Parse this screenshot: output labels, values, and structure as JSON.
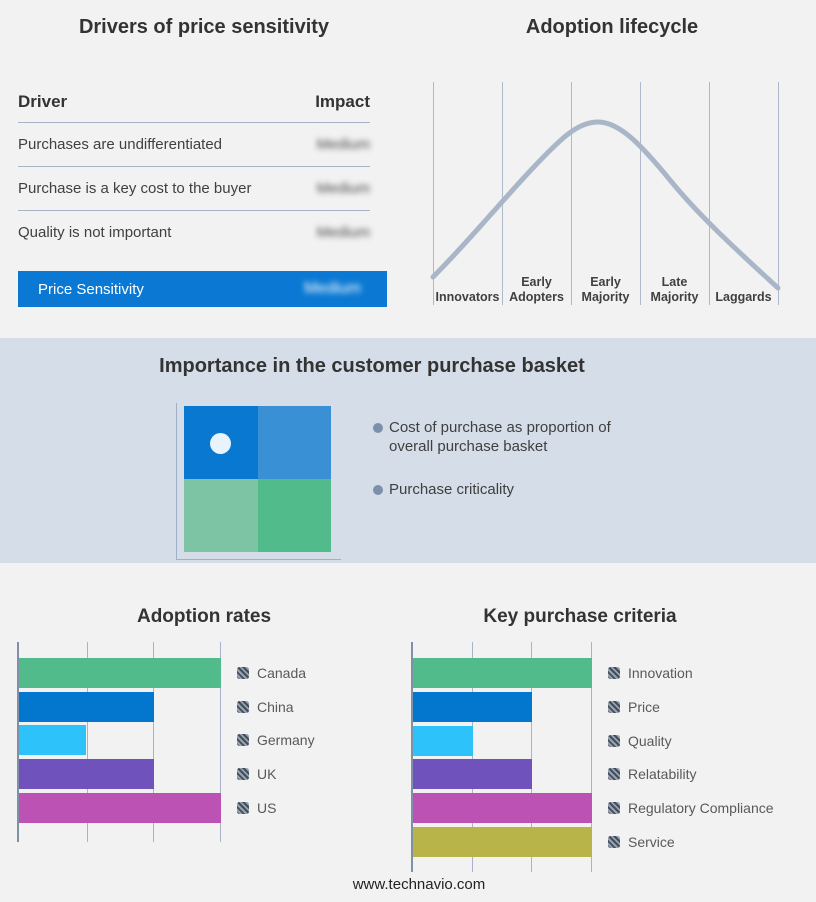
{
  "drivers_panel": {
    "title": "Drivers of price sensitivity",
    "col_driver": "Driver",
    "col_impact": "Impact",
    "rows": [
      {
        "driver": "Purchases are undifferentiated",
        "impact": "Medium"
      },
      {
        "driver": "Purchase is a key cost to the buyer",
        "impact": "Medium"
      },
      {
        "driver": "Quality is not important",
        "impact": "Medium"
      }
    ],
    "highlight": {
      "label": "Price Sensitivity",
      "impact": "Medium",
      "color": "#0b79d3"
    }
  },
  "lifecycle_panel": {
    "title": "Adoption lifecycle",
    "stages": [
      "Innovators",
      "Early Adopters",
      "Early Majority",
      "Late Majority",
      "Laggards"
    ],
    "curve_color": "#a9b6c8"
  },
  "basket_panel": {
    "title": "Importance in the customer purchase basket",
    "bullets": [
      "Cost of purchase as proportion of overall purchase basket",
      "Purchase criticality"
    ],
    "quadrant_colors": {
      "top_left": "#0878d0",
      "top_right": "#3990d4",
      "bottom_left": "#7cc4a4",
      "bottom_right": "#52bb8b"
    }
  },
  "adoption_rates": {
    "title": "Adoption rates",
    "max": 3,
    "items": [
      {
        "label": "Canada",
        "value": 3,
        "color": "#52bb8b"
      },
      {
        "label": "China",
        "value": 2,
        "color": "#0377ce"
      },
      {
        "label": "Germany",
        "value": 1,
        "color": "#2ec2fa"
      },
      {
        "label": "UK",
        "value": 2,
        "color": "#7052bc"
      },
      {
        "label": "US",
        "value": 3,
        "color": "#bc52b4"
      }
    ]
  },
  "key_criteria": {
    "title": "Key purchase criteria",
    "max": 3,
    "items": [
      {
        "label": "Innovation",
        "value": 3,
        "color": "#52bb8b"
      },
      {
        "label": "Price",
        "value": 2,
        "color": "#0377ce"
      },
      {
        "label": "Quality",
        "value": 1,
        "color": "#2ec2fa"
      },
      {
        "label": "Relatability",
        "value": 2,
        "color": "#7052bc"
      },
      {
        "label": "Regulatory Compliance",
        "value": 3,
        "color": "#bc52b4"
      },
      {
        "label": "Service",
        "value": 3,
        "color": "#b9b44a"
      }
    ]
  },
  "footer": {
    "url": "www.technavio.com"
  },
  "chart_data": [
    {
      "type": "table",
      "title": "Drivers of price sensitivity",
      "columns": [
        "Driver",
        "Impact"
      ],
      "rows": [
        [
          "Purchases are undifferentiated",
          "Medium"
        ],
        [
          "Purchase is a key cost to the buyer",
          "Medium"
        ],
        [
          "Quality is not important",
          "Medium"
        ],
        [
          "Price Sensitivity",
          "Medium"
        ]
      ],
      "note": "impact values shown blurred; last row highlighted blue"
    },
    {
      "type": "line",
      "title": "Adoption lifecycle",
      "categories": [
        "Innovators",
        "Early Adopters",
        "Early Majority",
        "Late Majority",
        "Laggards"
      ],
      "x_gridlines": 6,
      "relative_heights_at_gridlines": [
        0.15,
        0.6,
        0.94,
        0.89,
        0.52,
        0.09
      ],
      "peak": {
        "between": "Early Majority",
        "relative_height": 1.0
      },
      "shape": "bell curve, no y axis, vertical gridlines only"
    },
    {
      "type": "bar",
      "title": "Adoption rates",
      "orientation": "horizontal",
      "categories": [
        "Canada",
        "China",
        "Germany",
        "UK",
        "US"
      ],
      "values": [
        3,
        2,
        1,
        2,
        3
      ],
      "xlim": [
        0,
        3
      ],
      "grid": true,
      "legend_position": "right"
    },
    {
      "type": "bar",
      "title": "Key purchase criteria",
      "orientation": "horizontal",
      "categories": [
        "Innovation",
        "Price",
        "Quality",
        "Relatability",
        "Regulatory Compliance",
        "Service"
      ],
      "values": [
        3,
        2,
        1,
        2,
        3,
        3
      ],
      "xlim": [
        0,
        3
      ],
      "grid": true,
      "legend_position": "right"
    }
  ]
}
